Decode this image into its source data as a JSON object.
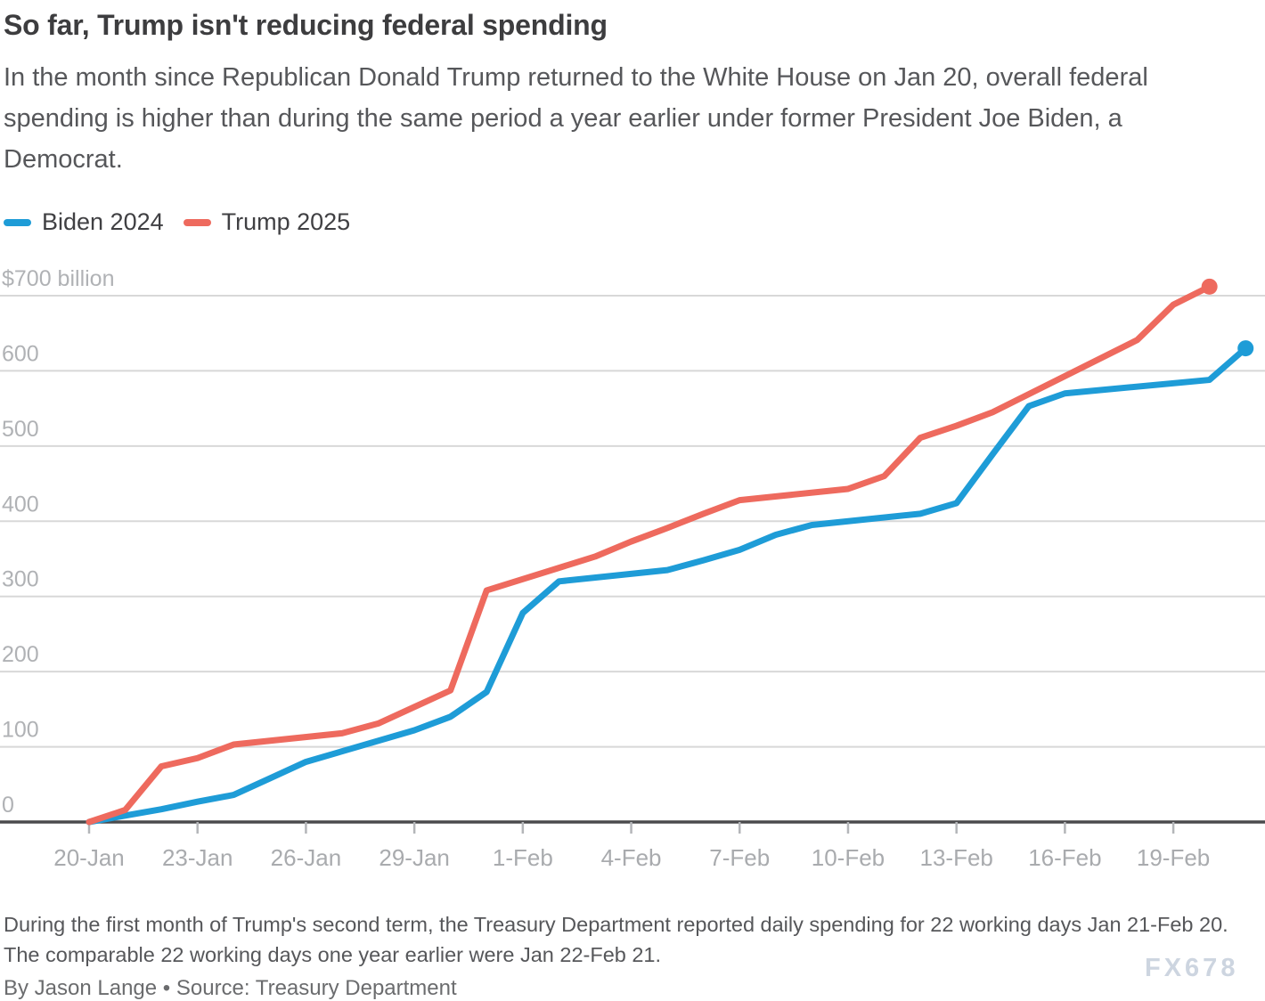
{
  "header": {
    "title": "So far, Trump isn't reducing federal spending",
    "subtitle": "In the month since Republican Donald Trump returned to the White House on Jan 20, overall federal spending is higher than during the same period a year earlier under former President Joe Biden, a Democrat."
  },
  "chart_data": {
    "type": "line",
    "title": "So far, Trump isn't reducing federal spending",
    "unit": "US$ billions, cumulative federal spending",
    "xlabel": "",
    "ylabel": "$ billion",
    "ylim": [
      0,
      700
    ],
    "grid": true,
    "legend_position": "top-left",
    "x_axis_note": "day 0 = Jan 20, calendar-day spacing",
    "y_ticks": [
      {
        "value": 0,
        "label": "0"
      },
      {
        "value": 100,
        "label": "100"
      },
      {
        "value": 200,
        "label": "200"
      },
      {
        "value": 300,
        "label": "300"
      },
      {
        "value": 400,
        "label": "400"
      },
      {
        "value": 500,
        "label": "500"
      },
      {
        "value": 600,
        "label": "600"
      },
      {
        "value": 700,
        "label": "$700 billion"
      }
    ],
    "x_ticks": [
      {
        "day": 0,
        "label": "20-Jan"
      },
      {
        "day": 3,
        "label": "23-Jan"
      },
      {
        "day": 6,
        "label": "26-Jan"
      },
      {
        "day": 9,
        "label": "29-Jan"
      },
      {
        "day": 12,
        "label": "1-Feb"
      },
      {
        "day": 15,
        "label": "4-Feb"
      },
      {
        "day": 18,
        "label": "7-Feb"
      },
      {
        "day": 21,
        "label": "10-Feb"
      },
      {
        "day": 24,
        "label": "13-Feb"
      },
      {
        "day": 27,
        "label": "16-Feb"
      },
      {
        "day": 30,
        "label": "19-Feb"
      }
    ],
    "series": [
      {
        "name": "Biden 2024",
        "color": "#1e9cd7",
        "end_dot": true,
        "points": [
          {
            "day": 0,
            "date": "Jan 20",
            "value": 0
          },
          {
            "day": 2,
            "date": "Jan 22",
            "value": 17
          },
          {
            "day": 3,
            "date": "Jan 23",
            "value": 27
          },
          {
            "day": 4,
            "date": "Jan 24",
            "value": 36
          },
          {
            "day": 5,
            "date": "Jan 25",
            "value": 58
          },
          {
            "day": 6,
            "date": "Jan 26",
            "value": 80
          },
          {
            "day": 9,
            "date": "Jan 29",
            "value": 122
          },
          {
            "day": 10,
            "date": "Jan 30",
            "value": 140
          },
          {
            "day": 11,
            "date": "Jan 31",
            "value": 173
          },
          {
            "day": 12,
            "date": "Feb 1",
            "value": 278
          },
          {
            "day": 13,
            "date": "Feb 2",
            "value": 320
          },
          {
            "day": 16,
            "date": "Feb 5",
            "value": 335
          },
          {
            "day": 17,
            "date": "Feb 6",
            "value": 348
          },
          {
            "day": 18,
            "date": "Feb 7",
            "value": 362
          },
          {
            "day": 19,
            "date": "Feb 8",
            "value": 382
          },
          {
            "day": 20,
            "date": "Feb 9",
            "value": 395
          },
          {
            "day": 23,
            "date": "Feb 12",
            "value": 410
          },
          {
            "day": 24,
            "date": "Feb 13",
            "value": 424
          },
          {
            "day": 25,
            "date": "Feb 14",
            "value": 489
          },
          {
            "day": 26,
            "date": "Feb 15",
            "value": 553
          },
          {
            "day": 27,
            "date": "Feb 16",
            "value": 570
          },
          {
            "day": 31,
            "date": "Feb 20",
            "value": 588
          },
          {
            "day": 32,
            "date": "Feb 21",
            "value": 630
          }
        ]
      },
      {
        "name": "Trump 2025",
        "color": "#ee6a5e",
        "end_dot": true,
        "points": [
          {
            "day": 0,
            "date": "Jan 20",
            "value": 0
          },
          {
            "day": 1,
            "date": "Jan 21",
            "value": 16
          },
          {
            "day": 2,
            "date": "Jan 22",
            "value": 74
          },
          {
            "day": 3,
            "date": "Jan 23",
            "value": 85
          },
          {
            "day": 4,
            "date": "Jan 24",
            "value": 103
          },
          {
            "day": 7,
            "date": "Jan 27",
            "value": 118
          },
          {
            "day": 8,
            "date": "Jan 28",
            "value": 131
          },
          {
            "day": 9,
            "date": "Jan 29",
            "value": 153
          },
          {
            "day": 10,
            "date": "Jan 30",
            "value": 175
          },
          {
            "day": 11,
            "date": "Jan 31",
            "value": 308
          },
          {
            "day": 14,
            "date": "Feb 3",
            "value": 353
          },
          {
            "day": 15,
            "date": "Feb 4",
            "value": 373
          },
          {
            "day": 16,
            "date": "Feb 5",
            "value": 391
          },
          {
            "day": 17,
            "date": "Feb 6",
            "value": 410
          },
          {
            "day": 18,
            "date": "Feb 7",
            "value": 428
          },
          {
            "day": 21,
            "date": "Feb 10",
            "value": 443
          },
          {
            "day": 22,
            "date": "Feb 11",
            "value": 460
          },
          {
            "day": 23,
            "date": "Feb 12",
            "value": 511
          },
          {
            "day": 24,
            "date": "Feb 13",
            "value": 527
          },
          {
            "day": 25,
            "date": "Feb 14",
            "value": 545
          },
          {
            "day": 29,
            "date": "Feb 18",
            "value": 641
          },
          {
            "day": 30,
            "date": "Feb 19",
            "value": 688
          },
          {
            "day": 31,
            "date": "Feb 20",
            "value": 712
          }
        ]
      }
    ]
  },
  "colors": {
    "background": "#ffffff",
    "grid": "#d8d8d8",
    "axis": "#4b4b4d",
    "axis_tick": "#b4b6b9",
    "axis_label": "#a9abae",
    "y_label": "#b0b2b5",
    "title": "#3d3d3f",
    "subtitle": "#56575a",
    "biden": "#1e9cd7",
    "trump": "#ee6a5e",
    "watermark": "#cdd5e0"
  },
  "footer": {
    "note": "During the first month of Trump's second term, the Treasury Department reported daily spending for 22 working days Jan 21-Feb 20. The comparable 22 working days one year earlier were Jan 22-Feb 21.",
    "byline": "By Jason Lange • Source: Treasury Department",
    "watermark": "FX678"
  }
}
